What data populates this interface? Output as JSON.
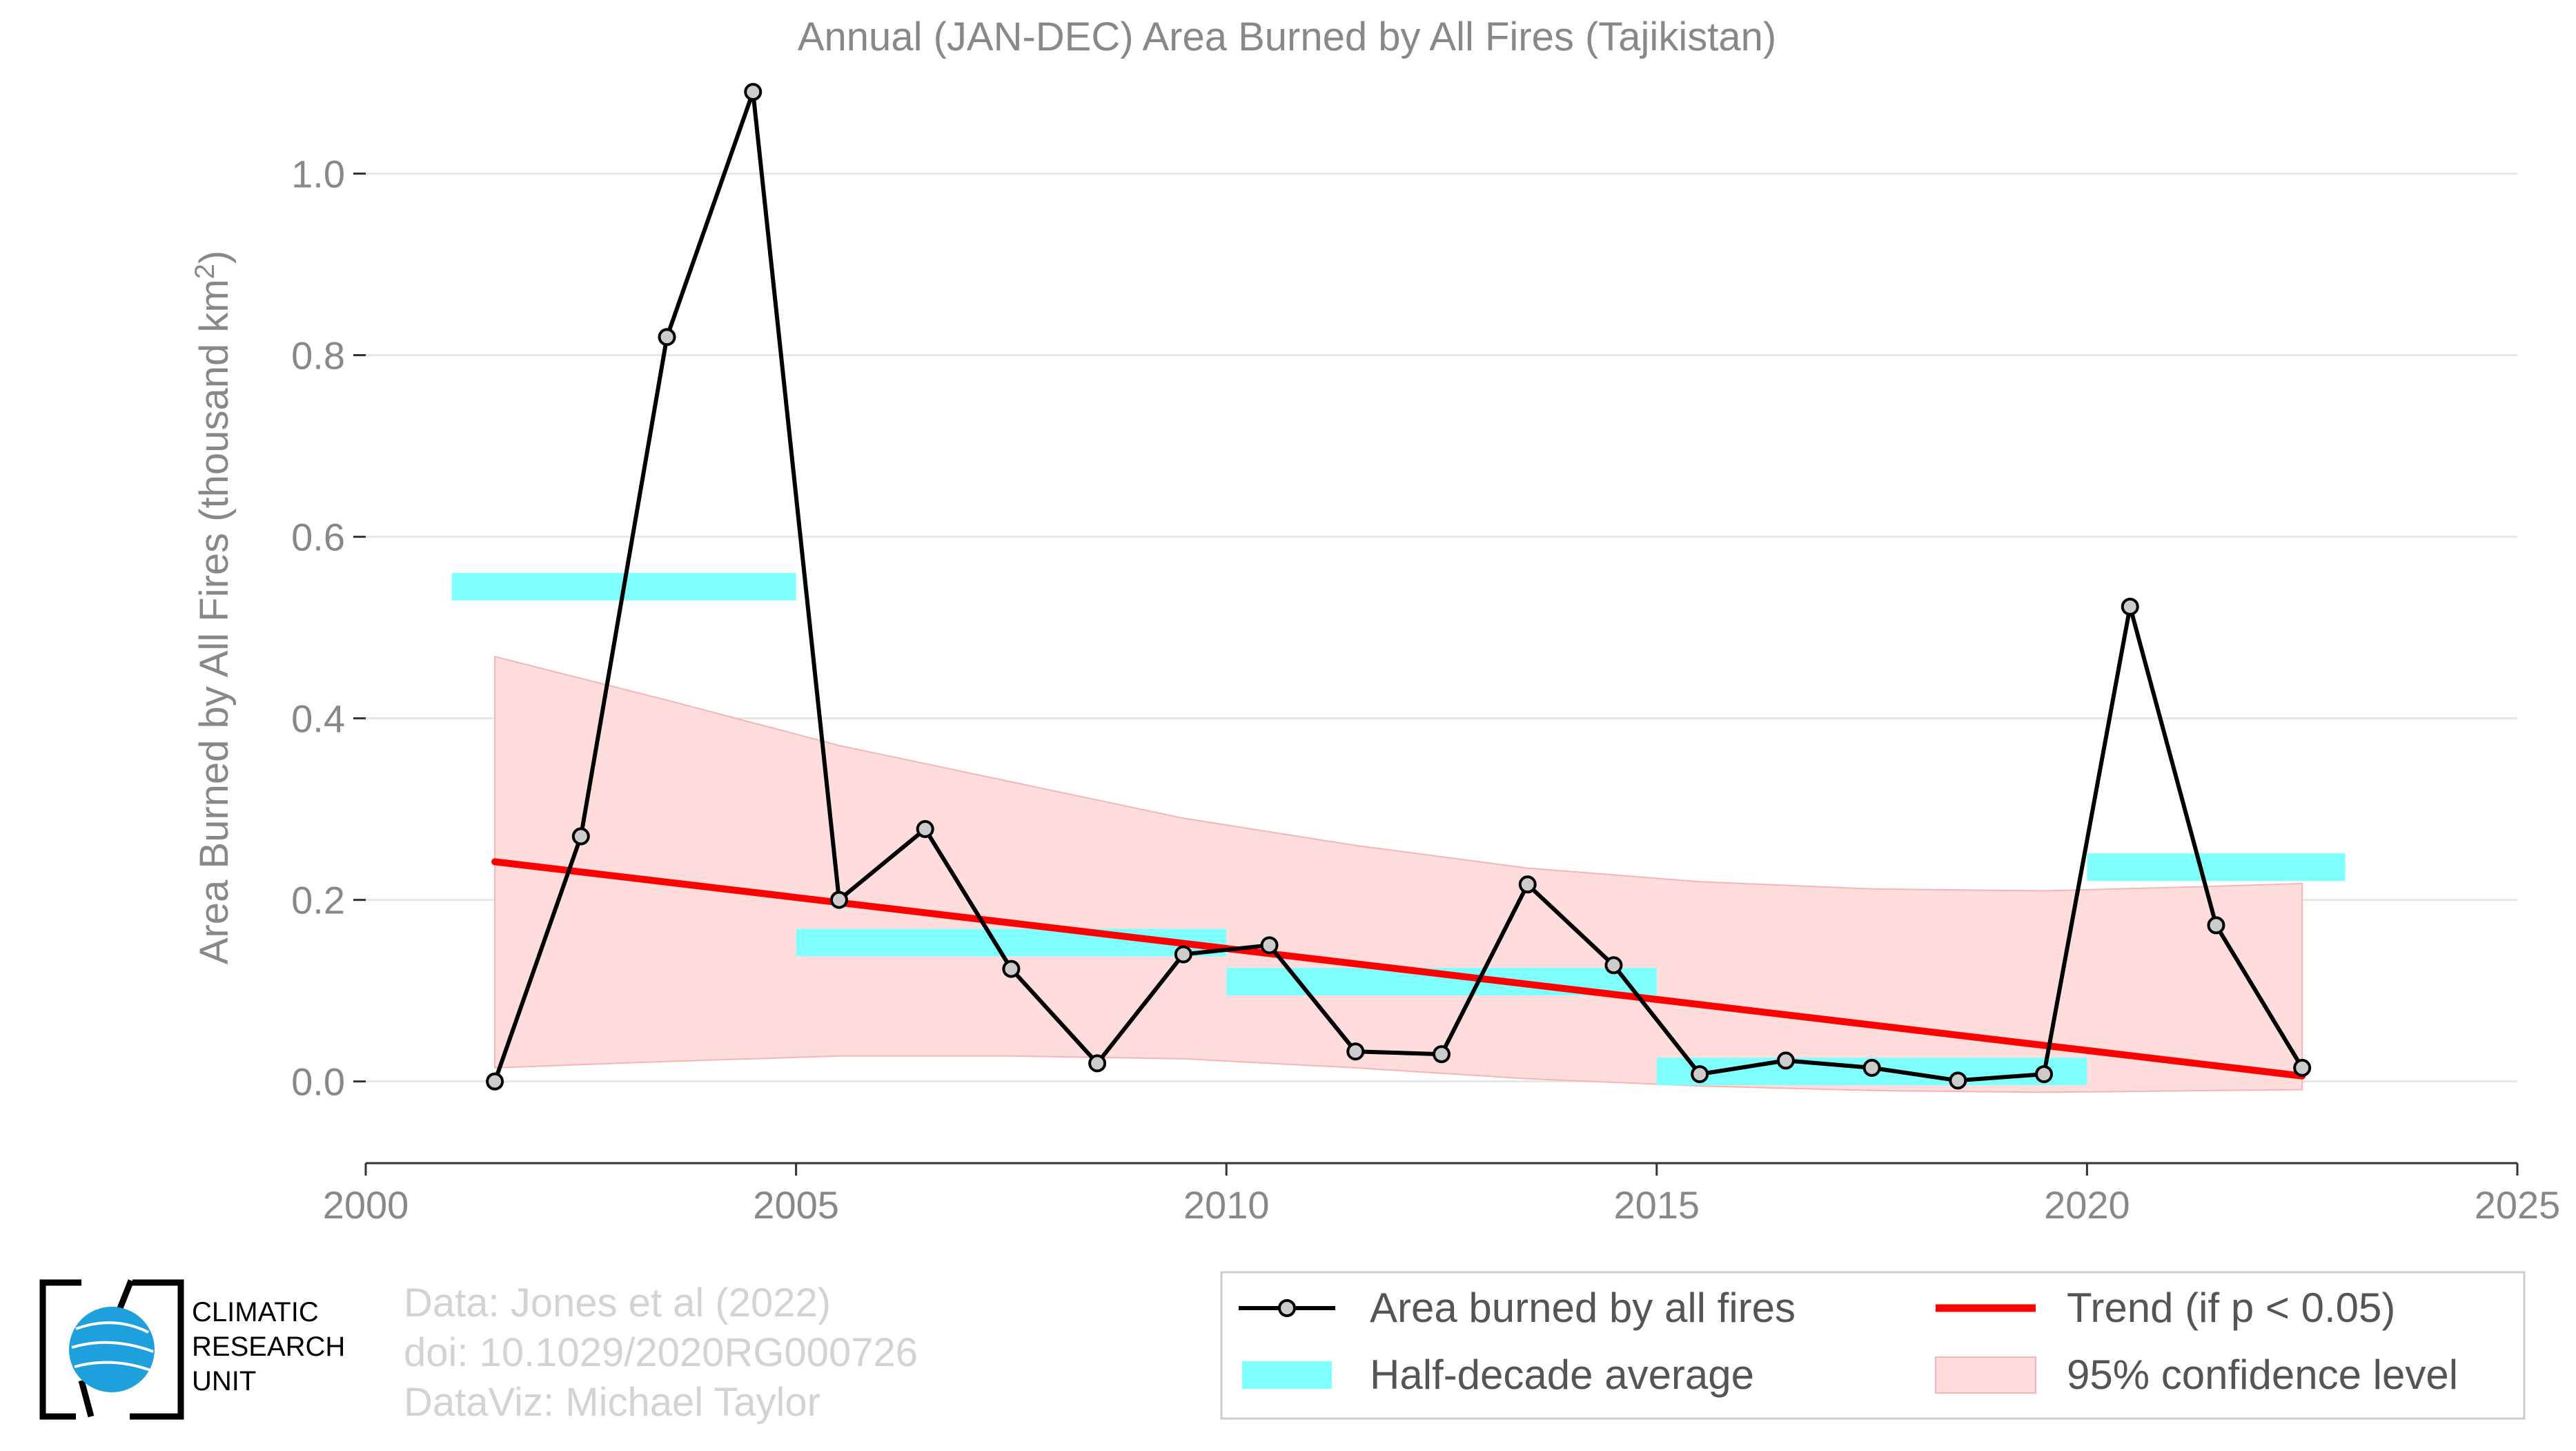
{
  "chart_data": {
    "type": "line",
    "title": "Annual (JAN-DEC) Area Burned by All Fires (Tajikistan)",
    "xlabel": "",
    "ylabel": "Area Burned by All Fires (thousand km",
    "ylabel_sup": "2",
    "ylabel_close": ")",
    "xlim": [
      2000,
      2025
    ],
    "ylim": [
      -0.09,
      1.1
    ],
    "x_ticks": [
      2000,
      2005,
      2010,
      2015,
      2020,
      2025
    ],
    "y_ticks": [
      0.0,
      0.2,
      0.4,
      0.6,
      0.8,
      1.0
    ],
    "y_tick_labels": [
      "0.0",
      "0.2",
      "0.4",
      "0.6",
      "0.8",
      "1.0"
    ],
    "grid": "horizontal",
    "series": [
      {
        "name": "Area burned by all fires",
        "color": "#000000",
        "marker_fill": "#cccccc",
        "x": [
          2001.5,
          2002.5,
          2003.5,
          2004.5,
          2005.5,
          2006.5,
          2007.5,
          2008.5,
          2009.5,
          2010.5,
          2011.5,
          2012.5,
          2013.5,
          2014.5,
          2015.5,
          2016.5,
          2017.5,
          2018.5,
          2019.5,
          2020.5,
          2021.5,
          2022.5
        ],
        "values": [
          0.0,
          0.27,
          0.82,
          1.09,
          0.2,
          0.278,
          0.124,
          0.02,
          0.14,
          0.15,
          0.033,
          0.03,
          0.217,
          0.128,
          0.008,
          0.023,
          0.015,
          0.001,
          0.008,
          0.523,
          0.172,
          0.015
        ]
      }
    ],
    "half_decade_average": {
      "name": "Half-decade average",
      "color": "#80ffff",
      "segments": [
        {
          "x0": 2001,
          "x1": 2005,
          "value": 0.545
        },
        {
          "x0": 2005,
          "x1": 2010,
          "value": 0.153
        },
        {
          "x0": 2010,
          "x1": 2015,
          "value": 0.11
        },
        {
          "x0": 2015,
          "x1": 2020,
          "value": 0.011
        },
        {
          "x0": 2020,
          "x1": 2023,
          "value": 0.236
        }
      ]
    },
    "trend": {
      "name": "Trend (if p < 0.05)",
      "color": "#ff0000",
      "x": [
        2001.5,
        2022.5
      ],
      "values": [
        0.242,
        0.006
      ]
    },
    "confidence_band": {
      "name": "95% confidence level",
      "fill": "#ffdddd",
      "stroke": "#f5b5b5",
      "x": [
        2001.5,
        2003.5,
        2005.5,
        2007.5,
        2009.5,
        2011.5,
        2013.5,
        2015.5,
        2017.5,
        2019.5,
        2021.5,
        2022.5
      ],
      "upper": [
        0.468,
        0.42,
        0.37,
        0.33,
        0.29,
        0.26,
        0.235,
        0.22,
        0.212,
        0.21,
        0.215,
        0.218
      ],
      "lower": [
        0.015,
        0.022,
        0.028,
        0.028,
        0.025,
        0.015,
        0.003,
        -0.005,
        -0.01,
        -0.012,
        -0.01,
        -0.009
      ]
    },
    "legend": {
      "position": "bottom-right",
      "columns": 2
    }
  },
  "legend": {
    "line_label": "Area burned by all fires",
    "trend_label": "Trend (if p < 0.05)",
    "avg_label": "Half-decade average",
    "ci_label": "95% confidence level"
  },
  "credits": {
    "line1": "Data: Jones et al (2022)",
    "line2": "doi: 10.1029/2020RG000726",
    "line3": "DataViz: Michael Taylor"
  },
  "logo": {
    "line1": "CLIMATIC",
    "line2": "RESEARCH",
    "line3": "UNIT"
  }
}
